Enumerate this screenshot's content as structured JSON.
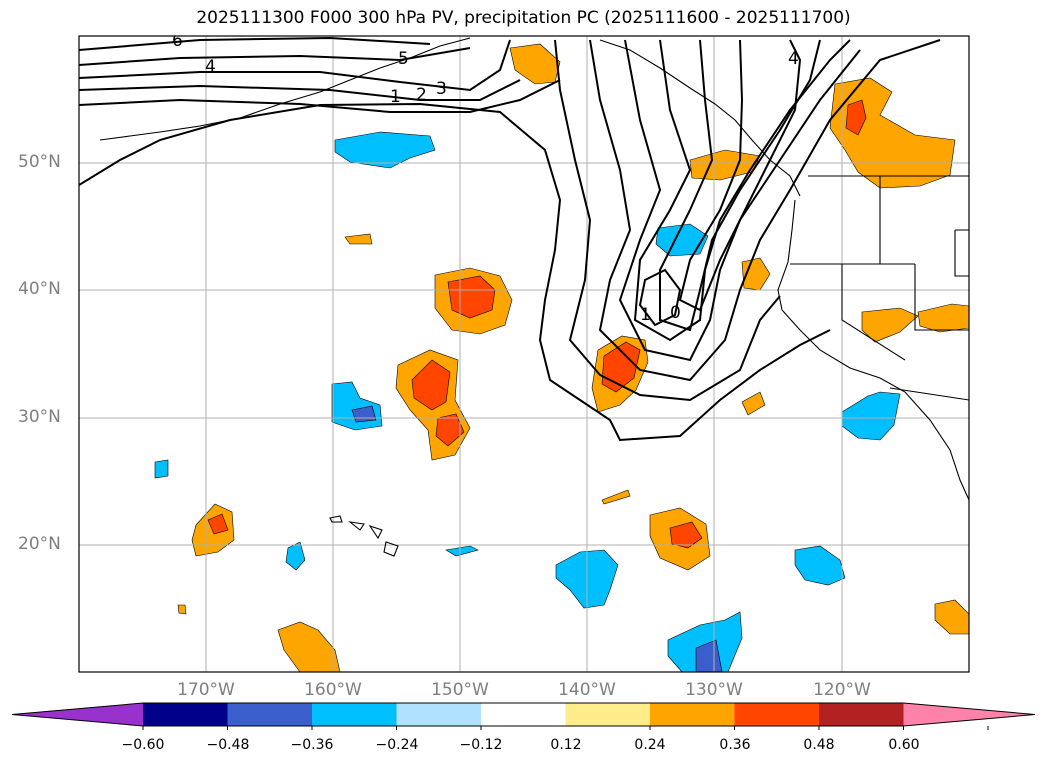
{
  "title": "2025111300 F000 300 hPa PV, precipitation PC (2025111600 - 2025111700)",
  "lat_labels": [
    "50°N",
    "40°N",
    "30°N",
    "20°N"
  ],
  "lon_labels": [
    "170°W",
    "160°W",
    "150°W",
    "140°W",
    "130°W",
    "120°W"
  ],
  "contour_labels": [
    "6",
    "4",
    "5",
    "1",
    "2",
    "3",
    "4",
    "1",
    "0"
  ],
  "colorbar": {
    "ticks": [
      "−0.60",
      "−0.48",
      "−0.36",
      "−0.24",
      "−0.12",
      "0.12",
      "0.24",
      "0.36",
      "0.48",
      "0.60"
    ],
    "colors": [
      "#9932cc",
      "#00008b",
      "#3a5fcd",
      "#00bfff",
      "#b0e2ff",
      "#ffffff",
      "#ffec8b",
      "#ffa500",
      "#ff4500",
      "#b22222",
      "#ff82ab"
    ]
  }
}
